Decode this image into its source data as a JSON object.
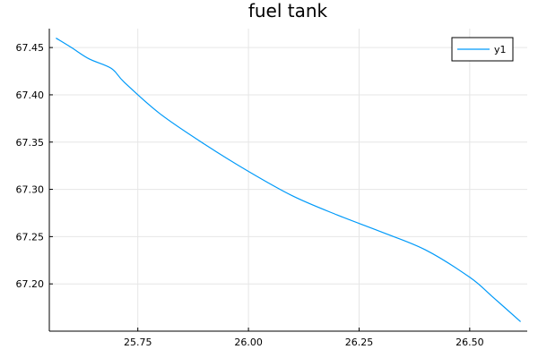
{
  "chart_data": {
    "type": "line",
    "title": "fuel tank",
    "xlabel": "",
    "ylabel": "",
    "xlim": [
      25.55,
      26.63
    ],
    "ylim": [
      67.15,
      67.47
    ],
    "x_ticks": [
      25.75,
      26.0,
      26.25,
      26.5
    ],
    "x_tick_labels": [
      "25.75",
      "26.00",
      "26.25",
      "26.50"
    ],
    "y_ticks": [
      67.2,
      67.25,
      67.3,
      67.35,
      67.4,
      67.45
    ],
    "y_tick_labels": [
      "67.20",
      "67.25",
      "67.30",
      "67.35",
      "67.40",
      "67.45"
    ],
    "grid": true,
    "legend_position": "top-right",
    "series": [
      {
        "name": "y1",
        "color": "#009af9",
        "x": [
          25.565,
          25.6,
          25.64,
          25.69,
          25.72,
          25.8,
          25.9,
          26.0,
          26.1,
          26.2,
          26.3,
          26.4,
          26.5,
          26.55,
          26.615
        ],
        "y": [
          67.46,
          67.45,
          67.438,
          67.428,
          67.413,
          67.38,
          67.348,
          67.319,
          67.293,
          67.273,
          67.255,
          67.236,
          67.207,
          67.187,
          67.16
        ]
      }
    ]
  }
}
